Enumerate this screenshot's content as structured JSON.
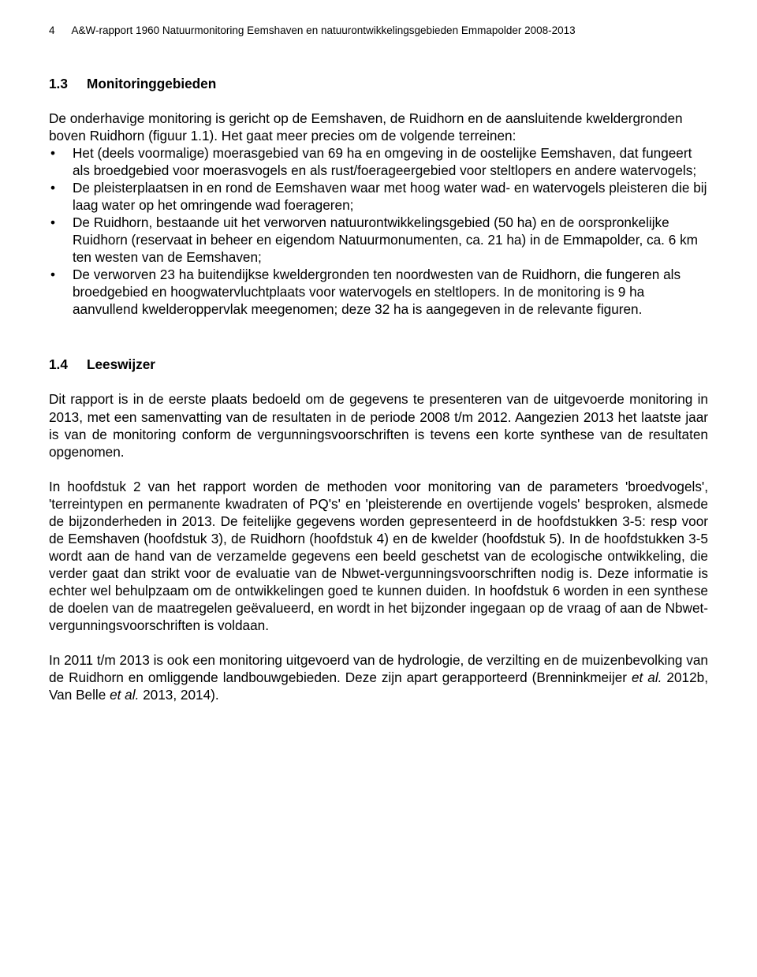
{
  "header": {
    "page_number": "4",
    "running_title": "A&W-rapport 1960 Natuurmonitoring Eemshaven en natuurontwikkelingsgebieden Emmapolder 2008-2013"
  },
  "section_1_3": {
    "number": "1.3",
    "title": "Monitoringgebieden",
    "intro": "De onderhavige monitoring is gericht op de Eemshaven, de Ruidhorn en de aansluitende kweldergronden boven Ruidhorn (figuur 1.1). Het gaat meer precies om de volgende terreinen:",
    "bullets": [
      "Het (deels voormalige) moerasgebied van 69 ha en omgeving in de oostelijke Eemshaven, dat fungeert als broedgebied voor moerasvogels en als rust/foerageergebied voor steltlopers en andere watervogels;",
      "De pleisterplaatsen in en rond de Eemshaven waar met hoog water wad- en watervogels pleisteren die bij laag water op het omringende wad foerageren;",
      "De Ruidhorn, bestaande uit het verworven natuurontwikkelingsgebied (50 ha) en de oorspronkelijke Ruidhorn (reservaat in beheer en eigendom Natuurmonumenten, ca. 21 ha) in de Emmapolder, ca. 6 km ten westen van de Eemshaven;",
      "De verworven 23 ha buitendijkse kweldergronden ten noordwesten van de Ruidhorn, die fungeren als broedgebied en hoogwatervluchtplaats voor watervogels en steltlopers. In de monitoring is 9 ha aanvullend kwelderoppervlak meegenomen; deze 32 ha is aangegeven in de relevante figuren."
    ]
  },
  "section_1_4": {
    "number": "1.4",
    "title": "Leeswijzer",
    "para1": "Dit rapport is in de eerste plaats bedoeld om de gegevens te presenteren van de uitgevoerde monitoring in 2013, met een samenvatting van de resultaten in de periode 2008 t/m 2012. Aangezien 2013 het laatste jaar is van de monitoring conform de vergunningsvoorschriften is tevens een korte synthese van de resultaten opgenomen.",
    "para2": "In hoofdstuk 2 van het rapport worden de methoden voor monitoring van de parameters 'broedvogels', 'terreintypen en permanente kwadraten of PQ's' en 'pleisterende en overtijende vogels' besproken, alsmede de bijzonderheden in 2013. De feitelijke gegevens worden gepresenteerd in de hoofdstukken 3-5: resp voor de Eemshaven (hoofdstuk 3), de Ruidhorn (hoofdstuk 4) en de kwelder (hoofdstuk 5). In de hoofdstukken 3-5 wordt aan de hand van de verzamelde gegevens een beeld geschetst van de ecologische ontwikkeling, die verder gaat dan strikt voor de evaluatie van de Nbwet-vergunningsvoorschriften nodig is. Deze informatie is echter wel behulpzaam om de ontwikkelingen goed te kunnen duiden. In hoofdstuk 6 worden in een synthese de doelen van de maatregelen geëvalueerd, en wordt in het bijzonder ingegaan op de vraag of aan de Nbwet-vergunningsvoorschriften is voldaan.",
    "para3_pre": "In 2011 t/m 2013 is ook een monitoring uitgevoerd van de hydrologie, de verzilting en de muizenbevolking van de Ruidhorn en omliggende landbouwgebieden. Deze zijn apart gerapporteerd (Brenninkmeijer ",
    "para3_em1": "et al.",
    "para3_mid": " 2012b, Van Belle ",
    "para3_em2": "et al.",
    "para3_post": " 2013, 2014)."
  }
}
